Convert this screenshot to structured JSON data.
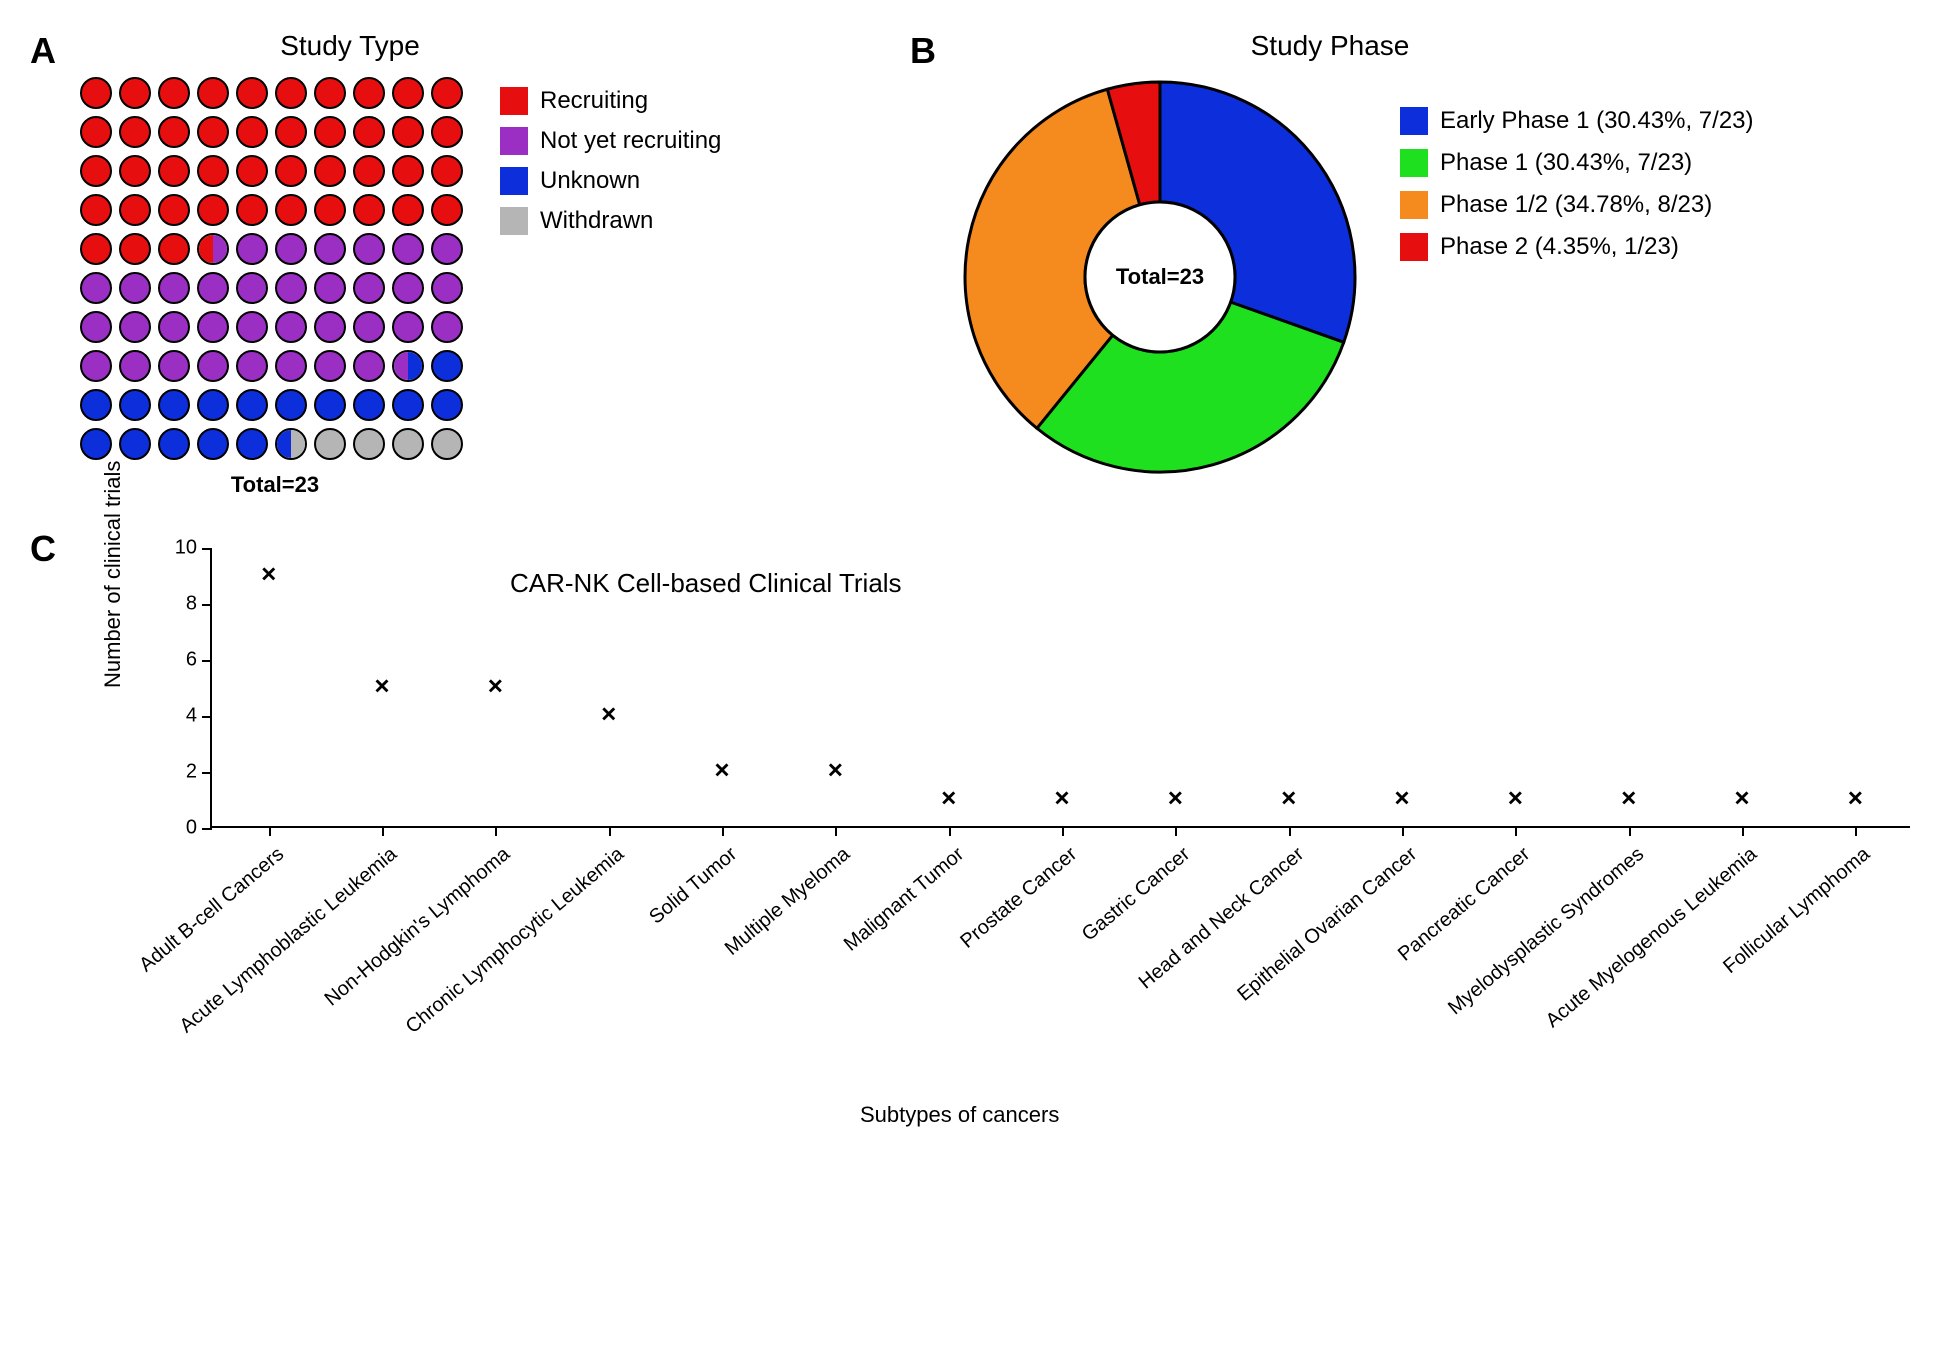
{
  "panelA": {
    "label": "A",
    "title": "Study Type",
    "total_label": "Total=23",
    "grid_cols": 10,
    "grid_rows": 10,
    "dot_size": 32,
    "dot_border": "#000000",
    "categories": [
      {
        "name": "Recruiting",
        "color": "#e60e0e",
        "percent": 43.5
      },
      {
        "name": "Not yet recruiting",
        "color": "#9b2fc4",
        "percent": 34.8
      },
      {
        "name": "Unknown",
        "color": "#0d2edb",
        "percent": 17.4
      },
      {
        "name": "Withdrawn",
        "color": "#b5b5b5",
        "percent": 4.3
      }
    ]
  },
  "panelB": {
    "label": "B",
    "title": "Study Phase",
    "total_label": "Total=23",
    "donut_outer_r": 195,
    "donut_inner_r": 75,
    "stroke": "#000000",
    "stroke_width": 3,
    "start_angle_deg": -90,
    "slices": [
      {
        "name": "Early Phase 1 (30.43%, 7/23)",
        "color": "#0d2edb",
        "count": 7
      },
      {
        "name": "Phase 1 (30.43%, 7/23)",
        "color": "#1fe01f",
        "count": 7
      },
      {
        "name": "Phase 1/2 (34.78%, 8/23)",
        "color": "#f58a1f",
        "count": 8
      },
      {
        "name": "Phase 2 (4.35%, 1/23)",
        "color": "#e60e0e",
        "count": 1
      }
    ]
  },
  "panelC": {
    "label": "C",
    "title": "CAR-NK Cell-based Clinical Trials",
    "y_label": "Number of clinical trials",
    "x_label": "Subtypes of cancers",
    "ylim": [
      0,
      10
    ],
    "ytick_step": 2,
    "marker": "×",
    "marker_color": "#000000",
    "axis_color": "#000000",
    "label_fontsize": 22,
    "tick_fontsize": 20,
    "points": [
      {
        "category": "Adult B-cell Cancers",
        "value": 9
      },
      {
        "category": "Acute Lymphoblastic Leukemia",
        "value": 5
      },
      {
        "category": "Non-Hodgkin's Lymphoma",
        "value": 5
      },
      {
        "category": "Chronic Lymphocytic Leukemia",
        "value": 4
      },
      {
        "category": "Solid Tumor",
        "value": 2
      },
      {
        "category": "Multiple Myeloma",
        "value": 2
      },
      {
        "category": "Malignant Tumor",
        "value": 1
      },
      {
        "category": "Prostate Cancer",
        "value": 1
      },
      {
        "category": "Gastric Cancer",
        "value": 1
      },
      {
        "category": "Head and Neck Cancer",
        "value": 1
      },
      {
        "category": "Epithelial Ovarian Cancer",
        "value": 1
      },
      {
        "category": "Pancreatic Cancer",
        "value": 1
      },
      {
        "category": "Myelodysplastic Syndromes",
        "value": 1
      },
      {
        "category": "Acute Myelogenous Leukemia",
        "value": 1
      },
      {
        "category": "Follicular Lymphoma",
        "value": 1
      }
    ]
  }
}
